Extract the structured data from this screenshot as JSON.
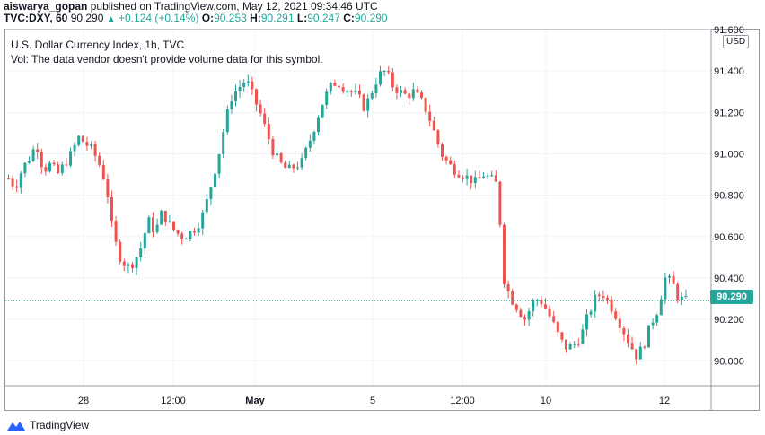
{
  "header": {
    "author": "aiswarya_gopan",
    "published_text": "published on TradingView.com, May 12, 2021 09:34:46 UTC",
    "symbol": "TVC:DXY, 60",
    "last": "90.290",
    "change": "+0.124 (+0.14%)",
    "o_label": "O:",
    "o_value": "90.253",
    "h_label": "H:",
    "h_value": "90.291",
    "l_label": "L:",
    "l_value": "90.247",
    "c_label": "C:",
    "c_value": "90.290"
  },
  "legend": {
    "title": "U.S. Dollar Currency Index, 1h, TVC",
    "vol_note": "Vol: The data vendor doesn't provide volume data for this symbol."
  },
  "currency_label": "USD",
  "current_price_label": "90.290",
  "watermark": {
    "text": "TradingView",
    "icon": "tradingview-logo-icon"
  },
  "colors": {
    "up": "#26a69a",
    "down": "#ef5350",
    "grid": "#f0f3fa",
    "text": "#131722"
  },
  "chart_data": {
    "type": "candlestick",
    "title": "U.S. Dollar Currency Index, 1h, TVC",
    "ylim": [
      89.88,
      91.6
    ],
    "y_ticks": [
      "90.000",
      "90.200",
      "90.400",
      "90.600",
      "90.800",
      "91.000",
      "91.200",
      "91.400",
      "91.600"
    ],
    "x_ticks": [
      "28",
      "12:00",
      "May",
      "5",
      "12:00",
      "10",
      "12"
    ],
    "grid": true,
    "current_price": 90.29,
    "close_path": [
      90.88,
      90.84,
      90.93,
      90.98,
      91.05,
      90.92,
      90.95,
      90.9,
      90.95,
      91.0,
      91.08,
      91.05,
      91.02,
      90.95,
      90.85,
      90.6,
      90.5,
      90.45,
      90.48,
      90.55,
      90.68,
      90.62,
      90.72,
      90.66,
      90.62,
      90.6,
      90.62,
      90.65,
      90.72,
      90.85,
      90.98,
      91.15,
      91.28,
      91.32,
      91.36,
      91.28,
      91.2,
      91.1,
      91.0,
      90.95,
      90.92,
      90.94,
      90.96,
      91.05,
      91.15,
      91.25,
      91.32,
      91.35,
      91.32,
      91.3,
      91.28,
      91.22,
      91.3,
      91.38,
      91.4,
      91.33,
      91.3,
      91.28,
      91.3,
      91.26,
      91.2,
      91.1,
      91.0,
      90.95,
      90.92,
      90.9,
      90.88,
      90.86,
      90.9,
      90.88,
      90.85,
      90.38,
      90.3,
      90.25,
      90.2,
      90.28,
      90.3,
      90.25,
      90.18,
      90.1,
      90.06,
      90.08,
      90.12,
      90.22,
      90.3,
      90.33,
      90.28,
      90.22,
      90.15,
      90.08,
      90.02,
      90.08,
      90.18,
      90.25,
      90.4,
      90.38,
      90.3,
      90.29
    ]
  }
}
